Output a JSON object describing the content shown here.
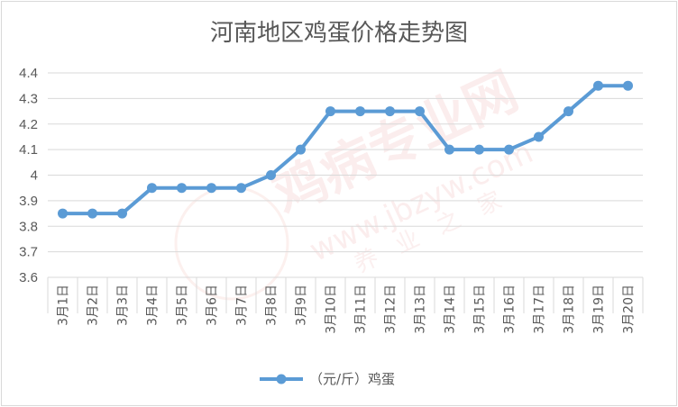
{
  "chart_data": {
    "type": "line",
    "title": "河南地区鸡蛋价格走势图",
    "categories": [
      "3月1日",
      "3月2日",
      "3月3日",
      "3月4日",
      "3月5日",
      "3月6日",
      "3月7日",
      "3月8日",
      "3月9日",
      "3月10日",
      "3月11日",
      "3月12日",
      "3月13日",
      "3月14日",
      "3月15日",
      "3月16日",
      "3月17日",
      "3月18日",
      "3月19日",
      "3月20日"
    ],
    "series": [
      {
        "name": "（元/斤）鸡蛋",
        "values": [
          3.85,
          3.85,
          3.85,
          3.95,
          3.95,
          3.95,
          3.95,
          4.0,
          4.1,
          4.25,
          4.25,
          4.25,
          4.25,
          4.1,
          4.1,
          4.1,
          4.15,
          4.25,
          4.35,
          4.35
        ],
        "color": "#5b9bd5"
      }
    ],
    "ylim": [
      3.6,
      4.4
    ],
    "yticks": [
      "3.6",
      "3.7",
      "3.8",
      "3.9",
      "4",
      "4.1",
      "4.2",
      "4.3",
      "4.4"
    ],
    "grid": true,
    "legend": "bottom",
    "watermark": {
      "main": "鸡病专业网",
      "url": "www.jbzyw.com",
      "extra": "养 业 之 家"
    }
  }
}
